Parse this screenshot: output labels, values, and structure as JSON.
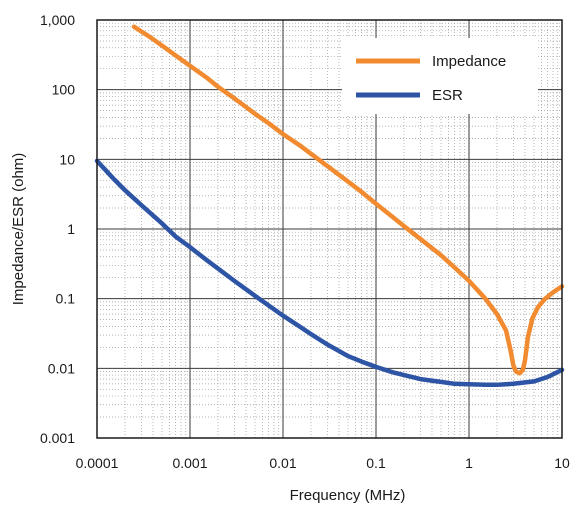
{
  "chart_data": {
    "type": "line",
    "xlabel": "Frequency (MHz)",
    "ylabel": "Impedance/ESR (ohm)",
    "x_scale": "log",
    "y_scale": "log",
    "xlim": [
      0.0001,
      10
    ],
    "ylim": [
      0.001,
      1000
    ],
    "x_ticks": [
      {
        "value": 0.0001,
        "label": "0.0001"
      },
      {
        "value": 0.001,
        "label": "0.001"
      },
      {
        "value": 0.01,
        "label": "0.01"
      },
      {
        "value": 0.1,
        "label": "0.1"
      },
      {
        "value": 1,
        "label": "1"
      },
      {
        "value": 10,
        "label": "10"
      }
    ],
    "y_ticks": [
      {
        "value": 0.001,
        "label": "0.001"
      },
      {
        "value": 0.01,
        "label": "0.01"
      },
      {
        "value": 0.1,
        "label": "0.1"
      },
      {
        "value": 1,
        "label": "1"
      },
      {
        "value": 10,
        "label": "10"
      },
      {
        "value": 100,
        "label": "100"
      },
      {
        "value": 1000,
        "label": "1,000"
      }
    ],
    "grid": true,
    "minor_grid": true,
    "legend_position": "top-right",
    "series": [
      {
        "name": "Impedance",
        "color": "#F28A30",
        "points": [
          [
            0.00025,
            800
          ],
          [
            0.00035,
            600
          ],
          [
            0.0005,
            430
          ],
          [
            0.0007,
            310
          ],
          [
            0.001,
            220
          ],
          [
            0.0015,
            150
          ],
          [
            0.002,
            110
          ],
          [
            0.003,
            75
          ],
          [
            0.005,
            45
          ],
          [
            0.007,
            33
          ],
          [
            0.01,
            23
          ],
          [
            0.015,
            16
          ],
          [
            0.02,
            12
          ],
          [
            0.03,
            8
          ],
          [
            0.05,
            4.8
          ],
          [
            0.07,
            3.4
          ],
          [
            0.1,
            2.3
          ],
          [
            0.15,
            1.5
          ],
          [
            0.2,
            1.1
          ],
          [
            0.3,
            0.72
          ],
          [
            0.5,
            0.42
          ],
          [
            0.7,
            0.28
          ],
          [
            1,
            0.18
          ],
          [
            1.5,
            0.1
          ],
          [
            2,
            0.06
          ],
          [
            2.5,
            0.035
          ],
          [
            2.8,
            0.018
          ],
          [
            3,
            0.011
          ],
          [
            3.2,
            0.009
          ],
          [
            3.5,
            0.0085
          ],
          [
            3.8,
            0.0095
          ],
          [
            4,
            0.013
          ],
          [
            4.3,
            0.028
          ],
          [
            4.8,
            0.052
          ],
          [
            5.5,
            0.075
          ],
          [
            6.5,
            0.098
          ],
          [
            7.5,
            0.115
          ],
          [
            8.5,
            0.13
          ],
          [
            10,
            0.15
          ]
        ]
      },
      {
        "name": "ESR",
        "color": "#2E55A5",
        "points": [
          [
            0.0001,
            9.5
          ],
          [
            0.00015,
            5.3
          ],
          [
            0.0002,
            3.6
          ],
          [
            0.0003,
            2.2
          ],
          [
            0.0005,
            1.2
          ],
          [
            0.0007,
            0.78
          ],
          [
            0.001,
            0.55
          ],
          [
            0.0015,
            0.36
          ],
          [
            0.002,
            0.27
          ],
          [
            0.003,
            0.18
          ],
          [
            0.005,
            0.11
          ],
          [
            0.007,
            0.08
          ],
          [
            0.01,
            0.057
          ],
          [
            0.015,
            0.04
          ],
          [
            0.02,
            0.031
          ],
          [
            0.03,
            0.022
          ],
          [
            0.05,
            0.015
          ],
          [
            0.07,
            0.0125
          ],
          [
            0.1,
            0.0105
          ],
          [
            0.15,
            0.0088
          ],
          [
            0.2,
            0.008
          ],
          [
            0.3,
            0.007
          ],
          [
            0.5,
            0.0064
          ],
          [
            0.7,
            0.006
          ],
          [
            1,
            0.0059
          ],
          [
            1.5,
            0.0058
          ],
          [
            2,
            0.0058
          ],
          [
            3,
            0.006
          ],
          [
            5,
            0.0065
          ],
          [
            7,
            0.0075
          ],
          [
            10,
            0.0095
          ]
        ]
      }
    ]
  }
}
